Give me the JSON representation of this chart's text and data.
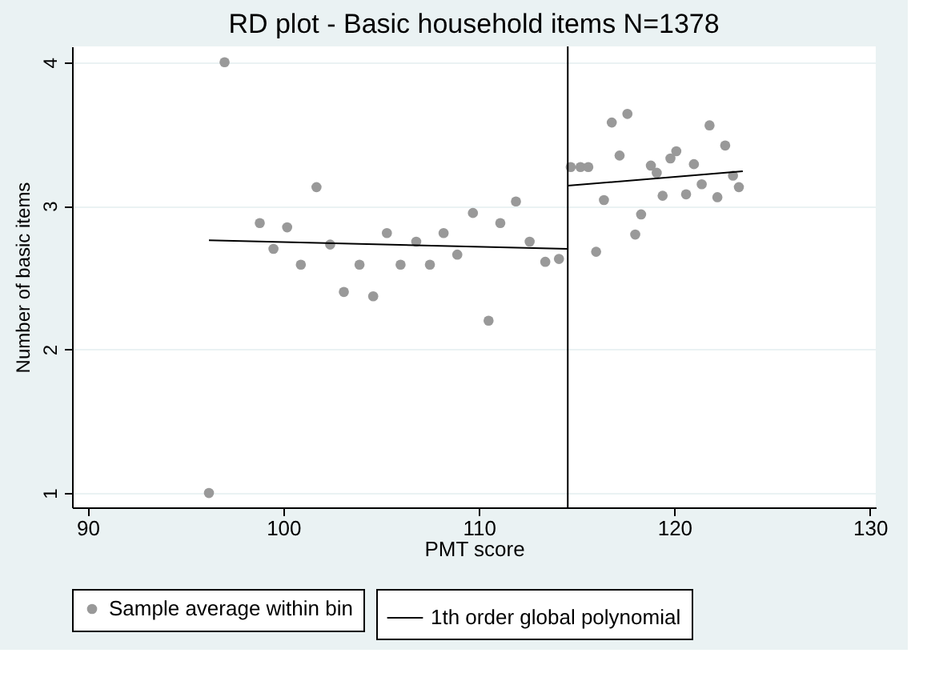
{
  "chart_data": {
    "type": "scatter",
    "title": "RD plot - Basic household items N=1378",
    "xlabel": "PMT score",
    "ylabel": "Number of basic items",
    "xlim": [
      89.2,
      130.3
    ],
    "ylim": [
      0.9,
      4.11
    ],
    "xticks": [
      90,
      100,
      110,
      120,
      130
    ],
    "yticks": [
      1,
      2,
      3,
      4
    ],
    "grid": "y",
    "legend": "bottom",
    "series": [
      {
        "name": "Sample average within bin",
        "marker": "circle",
        "color": "#999999",
        "x": [
          96.2,
          97.0,
          98.8,
          99.5,
          100.2,
          100.9,
          101.7,
          102.4,
          103.1,
          103.9,
          104.6,
          105.3,
          106.0,
          106.8,
          107.5,
          108.2,
          108.9,
          109.7,
          110.5,
          111.1,
          111.9,
          112.6,
          113.4,
          114.1,
          114.7,
          115.2,
          115.6,
          116.0,
          116.4,
          116.8,
          117.2,
          117.6,
          118.0,
          118.3,
          118.8,
          119.1,
          119.4,
          119.8,
          120.1,
          120.6,
          121.0,
          121.4,
          121.8,
          122.2,
          122.6,
          123.0,
          123.3
        ],
        "values": [
          1.0,
          4.0,
          2.88,
          2.7,
          2.85,
          2.59,
          3.13,
          2.73,
          2.4,
          2.59,
          2.37,
          2.81,
          2.59,
          2.75,
          2.59,
          2.81,
          2.66,
          2.95,
          2.2,
          2.88,
          3.03,
          2.75,
          2.61,
          2.63,
          3.27,
          3.27,
          3.27,
          2.68,
          3.04,
          3.58,
          3.35,
          3.64,
          2.8,
          2.94,
          3.28,
          3.23,
          3.07,
          3.33,
          3.38,
          3.08,
          3.29,
          3.15,
          3.56,
          3.06,
          3.42,
          3.21,
          3.13
        ]
      },
      {
        "name": "1th order global polynomial",
        "type": "line",
        "color": "#000000",
        "line_style": "solid",
        "x": [
          96.2,
          114.55
        ],
        "values": [
          2.76,
          2.7
        ]
      },
      {
        "type": "line",
        "color": "#000000",
        "line_style": "solid",
        "x": [
          114.55,
          123.5
        ],
        "values": [
          3.14,
          3.24
        ]
      }
    ],
    "ref_lines": [
      {
        "axis": "x",
        "value": 114.55,
        "color": "#000000"
      }
    ]
  }
}
